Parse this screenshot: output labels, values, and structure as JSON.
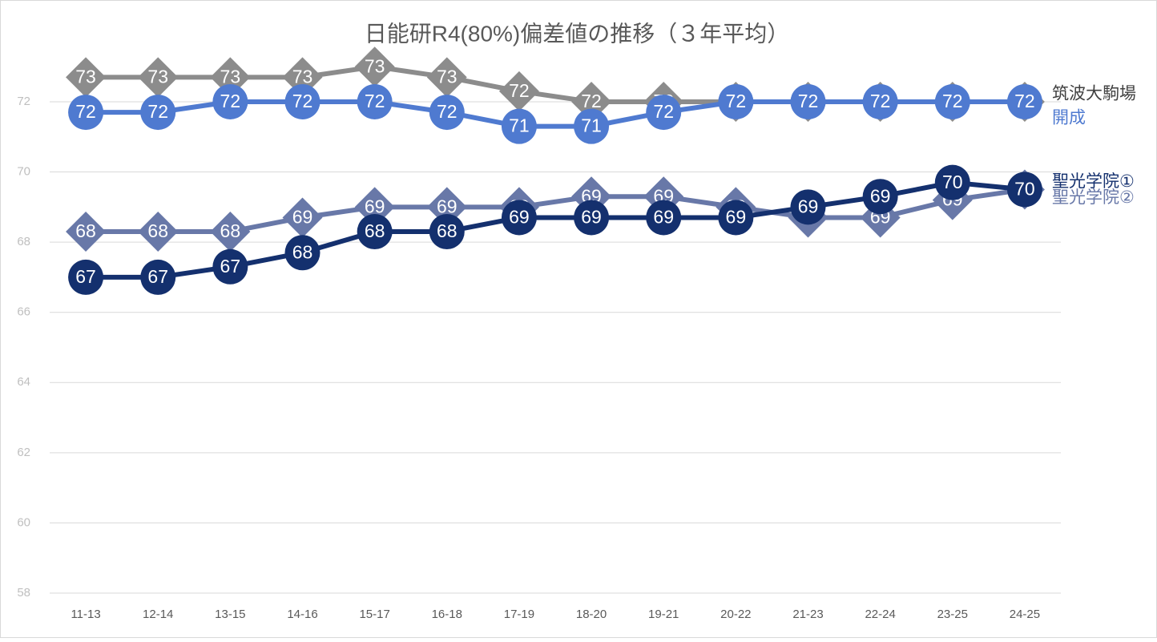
{
  "chart_data": {
    "type": "line",
    "title": "日能研R4(80%)偏差値の推移（３年平均）",
    "categories": [
      "11-13",
      "12-14",
      "13-15",
      "14-16",
      "15-17",
      "16-18",
      "17-19",
      "18-20",
      "19-21",
      "20-22",
      "21-23",
      "22-24",
      "23-25",
      "24-25"
    ],
    "ylim": [
      58,
      74
    ],
    "yticks": [
      58,
      60,
      62,
      64,
      66,
      68,
      70,
      72
    ],
    "grid": true,
    "series": [
      {
        "name": "筑波大駒場",
        "color": "#8c8c8c",
        "marker": "diamond",
        "values": [
          72.7,
          72.7,
          72.7,
          72.7,
          73.0,
          72.7,
          72.3,
          72.0,
          72.0,
          72.0,
          72.0,
          72.0,
          72.0,
          72.0
        ],
        "value_labels": [
          "73",
          "73",
          "73",
          "73",
          "73",
          "73",
          "72",
          "72",
          "72",
          "72",
          "72",
          "72",
          "72",
          "72"
        ]
      },
      {
        "name": "開成",
        "color": "#4f7ad0",
        "marker": "circle",
        "values": [
          71.7,
          71.7,
          72.0,
          72.0,
          72.0,
          71.7,
          71.3,
          71.3,
          71.7,
          72.0,
          72.0,
          72.0,
          72.0,
          72.0
        ],
        "value_labels": [
          "72",
          "72",
          "72",
          "72",
          "72",
          "72",
          "71",
          "71",
          "72",
          "72",
          "72",
          "72",
          "72",
          "72"
        ]
      },
      {
        "name": "聖光学院②",
        "color": "#6878a8",
        "marker": "diamond",
        "values": [
          68.3,
          68.3,
          68.3,
          68.7,
          69.0,
          69.0,
          69.0,
          69.3,
          69.3,
          69.0,
          68.7,
          68.7,
          69.2,
          69.5
        ],
        "value_labels": [
          "68",
          "68",
          "68",
          "69",
          "69",
          "69",
          "69",
          "69",
          "69",
          "69",
          "69",
          "69",
          "69",
          "70"
        ]
      },
      {
        "name": "聖光学院①",
        "color": "#14306e",
        "marker": "circle",
        "values": [
          67.0,
          67.0,
          67.3,
          67.7,
          68.3,
          68.3,
          68.7,
          68.7,
          68.7,
          68.7,
          69.0,
          69.3,
          69.7,
          69.5
        ],
        "value_labels": [
          "67",
          "67",
          "67",
          "68",
          "68",
          "68",
          "69",
          "69",
          "69",
          "69",
          "69",
          "69",
          "70",
          "70"
        ]
      }
    ]
  }
}
